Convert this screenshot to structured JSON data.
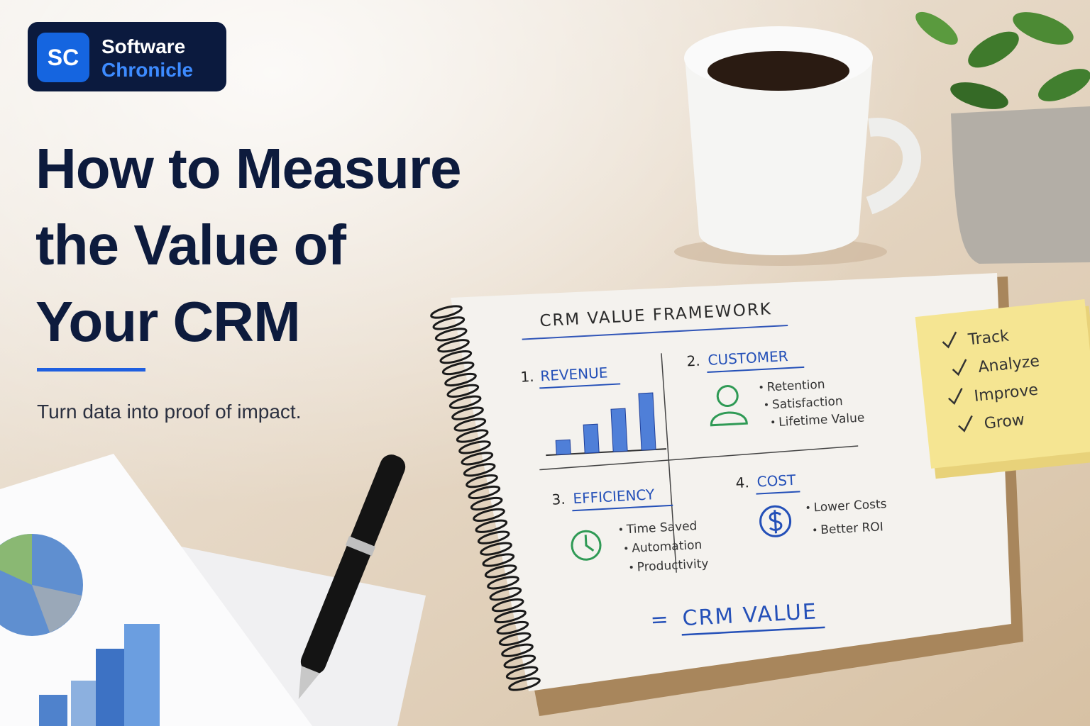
{
  "logo": {
    "badge": "SC",
    "name_line1": "Software",
    "name_line2": "Chronicle"
  },
  "headline": {
    "lines": [
      "How to Measure",
      "the Value of",
      "Your CRM"
    ]
  },
  "subtitle": "Turn data into proof of impact.",
  "notebook": {
    "title": "CRM VALUE FRAMEWORK",
    "sections": [
      {
        "number": "1.",
        "title": "REVENUE"
      },
      {
        "number": "2.",
        "title": "CUSTOMER",
        "bullets": [
          "Retention",
          "Satisfaction",
          "Lifetime Value"
        ]
      },
      {
        "number": "3.",
        "title": "EFFICIENCY",
        "bullets": [
          "Time Saved",
          "Automation",
          "Productivity"
        ]
      },
      {
        "number": "4.",
        "title": "COST",
        "bullets": [
          "Lower Costs",
          "Better ROI"
        ]
      }
    ],
    "result_symbol": "=",
    "result": "CRM VALUE"
  },
  "sticky_note": {
    "items": [
      "Track",
      "Analyze",
      "Improve",
      "Grow"
    ]
  }
}
